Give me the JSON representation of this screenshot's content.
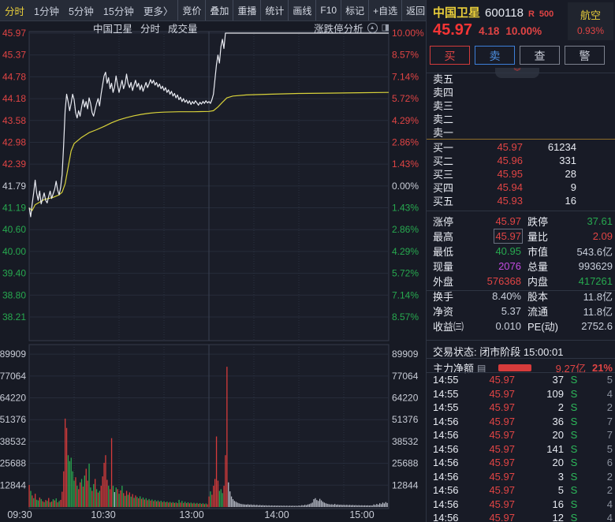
{
  "toolbar": {
    "tabs": [
      {
        "label": "分时",
        "active": true
      },
      {
        "label": "1分钟",
        "active": false
      },
      {
        "label": "5分钟",
        "active": false
      },
      {
        "label": "15分钟",
        "active": false
      },
      {
        "label": "更多〉",
        "active": false
      }
    ],
    "buttons": [
      "竞价",
      "叠加",
      "重播",
      "统计",
      "画线",
      "F10",
      "标记",
      "+自选",
      "返回"
    ]
  },
  "chart_header": {
    "title": "中国卫星",
    "mode": "分时",
    "vol": "成交量",
    "analysis_label": "涨跌停分析"
  },
  "quote": {
    "name": "中国卫星",
    "code": "600118",
    "tag_r": "R",
    "tag_num": "500",
    "sector": "航空",
    "sector_pct": "0.93%",
    "price": "45.97",
    "change": "4.18",
    "change_pct": "10.00%",
    "buttons": [
      {
        "label": "买",
        "kind": "buy"
      },
      {
        "label": "卖",
        "kind": "sell"
      },
      {
        "label": "查",
        "kind": "query"
      },
      {
        "label": "警",
        "kind": "alert"
      }
    ],
    "collapse_icon": "︾"
  },
  "order_book": {
    "sell_rows": [
      {
        "label": "卖五",
        "price": "",
        "vol": ""
      },
      {
        "label": "卖四",
        "price": "",
        "vol": ""
      },
      {
        "label": "卖三",
        "price": "",
        "vol": ""
      },
      {
        "label": "卖二",
        "price": "",
        "vol": ""
      },
      {
        "label": "卖一",
        "price": "",
        "vol": ""
      }
    ],
    "buy_rows": [
      {
        "label": "买一",
        "price": "45.97",
        "vol": "61234"
      },
      {
        "label": "买二",
        "price": "45.96",
        "vol": "331"
      },
      {
        "label": "买三",
        "price": "45.95",
        "vol": "28"
      },
      {
        "label": "买四",
        "price": "45.94",
        "vol": "9"
      },
      {
        "label": "买五",
        "price": "45.93",
        "vol": "16"
      }
    ]
  },
  "stats": [
    {
      "l1": "涨停",
      "v1": "45.97",
      "c1": "red",
      "l2": "跌停",
      "v2": "37.61",
      "c2": "green",
      "box1": false
    },
    {
      "l1": "最高",
      "v1": "45.97",
      "c1": "red",
      "l2": "量比",
      "v2": "2.09",
      "c2": "red",
      "box1": true
    },
    {
      "l1": "最低",
      "v1": "40.95",
      "c1": "green",
      "l2": "市值",
      "v2": "543.6亿",
      "c2": "white",
      "box1": false
    },
    {
      "l1": "现量",
      "v1": "2076",
      "c1": "magenta",
      "l2": "总量",
      "v2": "993629",
      "c2": "white",
      "box1": false
    },
    {
      "l1": "外盘",
      "v1": "576368",
      "c1": "red",
      "l2": "内盘",
      "v2": "417261",
      "c2": "green",
      "box1": false
    },
    {
      "l1": "换手",
      "v1": "8.40%",
      "c1": "white",
      "l2": "股本",
      "v2": "11.8亿",
      "c2": "white",
      "box1": false
    },
    {
      "l1": "净资",
      "v1": "5.37",
      "c1": "white",
      "l2": "流通",
      "v2": "11.8亿",
      "c2": "white",
      "box1": false
    },
    {
      "l1": "收益㈢",
      "v1": "0.010",
      "c1": "white",
      "l2": "PE(动)",
      "v2": "2752.6",
      "c2": "white",
      "box1": false
    }
  ],
  "status": {
    "label": "交易状态:",
    "value": "闭市阶段 15:00:01"
  },
  "main_force": {
    "label": "主力净额",
    "value": "9.27亿",
    "pct": "21%"
  },
  "trades": [
    [
      "14:55",
      "45.97",
      "37",
      "S",
      "5"
    ],
    [
      "14:55",
      "45.97",
      "109",
      "S",
      "4"
    ],
    [
      "14:55",
      "45.97",
      "2",
      "S",
      "2"
    ],
    [
      "14:56",
      "45.97",
      "36",
      "S",
      "7"
    ],
    [
      "14:56",
      "45.97",
      "20",
      "S",
      "7"
    ],
    [
      "14:56",
      "45.97",
      "141",
      "S",
      "5"
    ],
    [
      "14:56",
      "45.97",
      "20",
      "S",
      "6"
    ],
    [
      "14:56",
      "45.97",
      "3",
      "S",
      "2"
    ],
    [
      "14:56",
      "45.97",
      "5",
      "S",
      "2"
    ],
    [
      "14:56",
      "45.97",
      "16",
      "S",
      "4"
    ],
    [
      "14:56",
      "45.97",
      "12",
      "S",
      "4"
    ]
  ],
  "colors": {
    "red": "#e04444",
    "green": "#27a94f",
    "white": "#c9cfdb",
    "magenta": "#c24be0",
    "yellow": "#e9ce3a",
    "axis_white": "#c8ccd6",
    "bar_red": "#d63b3b",
    "bar_green": "#2aa44e",
    "bar_gray": "#b9bdc8",
    "price_line": "#e9ebf2",
    "avg_line": "#d8d23a",
    "grid": "#262c3a",
    "grid_dot": "#2a3140",
    "grid_mid": "#3a4152",
    "pane_border": "#353b4a"
  },
  "chart_data": {
    "type": "line",
    "title": "中国卫星 分时 成交量",
    "prev_close": 41.79,
    "price_max": 45.97,
    "price_min": 38.21,
    "limit_up": 45.97,
    "limit_down": 37.61,
    "day_high": 45.97,
    "day_low": 40.95,
    "minutes_total": 240,
    "price_axis_labels": [
      "45.97",
      "45.37",
      "44.78",
      "44.18",
      "43.58",
      "42.98",
      "42.39",
      "41.79",
      "41.19",
      "40.60",
      "40.00",
      "39.40",
      "38.80",
      "38.21"
    ],
    "pct_axis_labels": [
      "10.00%",
      "8.57%",
      "7.14%",
      "5.72%",
      "4.29%",
      "2.86%",
      "1.43%",
      "0.00%",
      "1.43%",
      "2.86%",
      "4.29%",
      "5.72%",
      "7.14%",
      "8.57%"
    ],
    "volume_axis_labels": [
      "89909",
      "77064",
      "64220",
      "51376",
      "38532",
      "25688",
      "12844"
    ],
    "time_axis_labels": [
      "09:30",
      "10:30",
      "13:00",
      "14:00",
      "15:00"
    ],
    "series": [
      {
        "name": "price",
        "points": [
          [
            0,
            41.2
          ],
          [
            1,
            40.95
          ],
          [
            2,
            41.3
          ],
          [
            3,
            41.6
          ],
          [
            4,
            41.95
          ],
          [
            5,
            41.6
          ],
          [
            6,
            41.4
          ],
          [
            7,
            41.65
          ],
          [
            8,
            41.3
          ],
          [
            9,
            41.45
          ],
          [
            10,
            41.6
          ],
          [
            11,
            41.4
          ],
          [
            12,
            41.33
          ],
          [
            13,
            41.5
          ],
          [
            14,
            41.65
          ],
          [
            15,
            41.45
          ],
          [
            16,
            41.58
          ],
          [
            17,
            41.7
          ],
          [
            18,
            41.92
          ],
          [
            19,
            41.68
          ],
          [
            20,
            41.55
          ],
          [
            21,
            41.75
          ],
          [
            22,
            42.1
          ],
          [
            23,
            42.9
          ],
          [
            24,
            43.85
          ],
          [
            25,
            44.3
          ],
          [
            26,
            44.1
          ],
          [
            27,
            43.85
          ],
          [
            28,
            44.05
          ],
          [
            29,
            44.3
          ],
          [
            30,
            44.15
          ],
          [
            31,
            43.8
          ],
          [
            32,
            43.65
          ],
          [
            33,
            43.85
          ],
          [
            34,
            43.7
          ],
          [
            35,
            43.95
          ],
          [
            36,
            44.15
          ],
          [
            37,
            43.95
          ],
          [
            38,
            44.1
          ],
          [
            39,
            43.9
          ],
          [
            40,
            44.2
          ],
          [
            41,
            44.05
          ],
          [
            42,
            43.8
          ],
          [
            43,
            43.7
          ],
          [
            44,
            43.88
          ],
          [
            45,
            44.05
          ],
          [
            46,
            44.18
          ],
          [
            47,
            43.98
          ],
          [
            48,
            44.3
          ],
          [
            49,
            44.55
          ],
          [
            50,
            44.8
          ],
          [
            51,
            44.9
          ],
          [
            52,
            44.6
          ],
          [
            53,
            44.75
          ],
          [
            54,
            44.45
          ],
          [
            55,
            44.6
          ],
          [
            56,
            44.35
          ],
          [
            57,
            44.5
          ],
          [
            58,
            44.8
          ],
          [
            59,
            44.55
          ],
          [
            60,
            44.35
          ],
          [
            61,
            44.52
          ],
          [
            62,
            44.68
          ],
          [
            63,
            44.45
          ],
          [
            64,
            44.58
          ],
          [
            65,
            44.85
          ],
          [
            66,
            44.6
          ],
          [
            67,
            44.48
          ],
          [
            68,
            44.62
          ],
          [
            69,
            44.4
          ],
          [
            70,
            44.55
          ],
          [
            71,
            44.68
          ],
          [
            72,
            44.5
          ],
          [
            73,
            44.6
          ],
          [
            74,
            44.42
          ],
          [
            75,
            44.55
          ],
          [
            76,
            44.38
          ],
          [
            77,
            44.5
          ],
          [
            78,
            44.62
          ],
          [
            79,
            44.48
          ],
          [
            80,
            44.58
          ],
          [
            81,
            44.7
          ],
          [
            82,
            44.6
          ],
          [
            83,
            44.68
          ],
          [
            84,
            44.55
          ],
          [
            85,
            44.62
          ],
          [
            86,
            44.5
          ],
          [
            87,
            44.58
          ],
          [
            88,
            44.45
          ],
          [
            89,
            44.52
          ],
          [
            90,
            44.4
          ],
          [
            91,
            44.48
          ],
          [
            92,
            44.35
          ],
          [
            93,
            44.42
          ],
          [
            94,
            44.3
          ],
          [
            95,
            44.38
          ],
          [
            96,
            44.25
          ],
          [
            97,
            44.32
          ],
          [
            98,
            44.2
          ],
          [
            99,
            44.28
          ],
          [
            100,
            44.15
          ],
          [
            101,
            44.22
          ],
          [
            102,
            44.1
          ],
          [
            103,
            44.18
          ],
          [
            104,
            44.08
          ],
          [
            105,
            44.14
          ],
          [
            106,
            44.05
          ],
          [
            107,
            44.12
          ],
          [
            108,
            44.02
          ],
          [
            109,
            44.1
          ],
          [
            110,
            44.04
          ],
          [
            111,
            44.12
          ],
          [
            112,
            44.06
          ],
          [
            113,
            44.0
          ],
          [
            114,
            44.08
          ],
          [
            115,
            44.03
          ],
          [
            116,
            44.1
          ],
          [
            117,
            44.05
          ],
          [
            118,
            44.12
          ],
          [
            119,
            44.06
          ],
          [
            120,
            44.1
          ],
          [
            121,
            44.05
          ],
          [
            122,
            44.15
          ],
          [
            123,
            44.3
          ],
          [
            124,
            44.7
          ],
          [
            125,
            45.1
          ],
          [
            126,
            45.37
          ],
          [
            127,
            45.15
          ],
          [
            128,
            45.6
          ],
          [
            129,
            45.8
          ],
          [
            130,
            45.55
          ],
          [
            131,
            45.97
          ],
          [
            240,
            45.97
          ]
        ]
      },
      {
        "name": "average",
        "points": [
          [
            0,
            41.19
          ],
          [
            2,
            41.12
          ],
          [
            4,
            41.28
          ],
          [
            10,
            41.42
          ],
          [
            16,
            41.48
          ],
          [
            20,
            41.55
          ],
          [
            22,
            41.62
          ],
          [
            24,
            41.85
          ],
          [
            26,
            42.3
          ],
          [
            28,
            42.75
          ],
          [
            30,
            42.95
          ],
          [
            35,
            43.12
          ],
          [
            40,
            43.25
          ],
          [
            45,
            43.33
          ],
          [
            50,
            43.42
          ],
          [
            55,
            43.52
          ],
          [
            60,
            43.6
          ],
          [
            65,
            43.66
          ],
          [
            70,
            43.71
          ],
          [
            75,
            43.75
          ],
          [
            80,
            43.78
          ],
          [
            85,
            43.8
          ],
          [
            90,
            43.81
          ],
          [
            100,
            43.82
          ],
          [
            110,
            43.82
          ],
          [
            120,
            43.83
          ],
          [
            123,
            43.85
          ],
          [
            126,
            43.95
          ],
          [
            129,
            44.08
          ],
          [
            132,
            44.2
          ],
          [
            136,
            44.25
          ],
          [
            145,
            44.28
          ],
          [
            160,
            44.3
          ],
          [
            180,
            44.32
          ],
          [
            200,
            44.33
          ],
          [
            220,
            44.34
          ],
          [
            240,
            44.35
          ]
        ]
      }
    ],
    "volume_values": [
      13000,
      9500,
      6800,
      5200,
      7800,
      4300,
      3900,
      5600,
      4700,
      3400,
      2900,
      4100,
      3600,
      5300,
      2800,
      3200,
      4600,
      3900,
      5100,
      2700,
      3500,
      4200,
      9000,
      21000,
      52000,
      46500,
      30500,
      27000,
      29000,
      21000,
      15500,
      17500,
      12500,
      10500,
      14500,
      16500,
      12000,
      18500,
      22500,
      15500,
      25500,
      11500,
      9500,
      13500,
      16500,
      10500,
      8500,
      9500,
      12500,
      18000,
      26000,
      30500,
      16000,
      12500,
      10500,
      40500,
      12500,
      8800,
      11500,
      10500,
      7800,
      9800,
      12500,
      8200,
      6600,
      9500,
      7200,
      8600,
      6100,
      7600,
      5400,
      6800,
      5900,
      5100,
      6300,
      4800,
      5600,
      4400,
      5200,
      4000,
      4700,
      3800,
      4400,
      3500,
      4100,
      3300,
      3900,
      3100,
      3700,
      2900,
      3400,
      2800,
      3200,
      2600,
      3000,
      2500,
      2900,
      2400,
      2700,
      2300,
      4200,
      2600,
      3600,
      2400,
      3100,
      2300,
      2800,
      2200,
      2600,
      2100,
      2500,
      2000,
      2400,
      1900,
      2300,
      1800,
      2200,
      1700,
      2100,
      1600,
      6200,
      9200,
      7200,
      12500,
      16500,
      41500,
      15500,
      9500,
      10500,
      8200,
      12500,
      30500,
      82500,
      14500,
      9200,
      6200,
      4600,
      3600,
      3100,
      2600,
      2200,
      1900,
      1700,
      1600,
      1500,
      1400,
      1600,
      1300,
      1500,
      1200,
      1400,
      1100,
      1300,
      1000,
      1200,
      950,
      1100,
      900,
      1050,
      850,
      1000,
      800,
      950,
      780,
      900,
      760,
      880,
      740,
      860,
      720,
      840,
      700,
      820,
      690,
      800,
      680,
      790,
      670,
      780,
      660,
      900,
      750,
      1100,
      950,
      1300,
      1100,
      1500,
      1700,
      2100,
      2600,
      4600,
      5200,
      4100,
      3600,
      4800,
      3900,
      3100,
      2600,
      2200,
      1900,
      1700,
      1500,
      1600,
      1400,
      1800,
      1300,
      1500,
      1250,
      1400,
      1200,
      1350,
      1150,
      1300,
      1100,
      1250,
      1050,
      1200,
      1000,
      1150,
      980,
      1100,
      950,
      1050,
      930,
      1020,
      900,
      1000,
      880,
      980,
      860,
      1500,
      1200,
      1800,
      1400,
      2200,
      1700,
      2600,
      2100,
      2900,
      2400
    ],
    "volume_colors": [
      "rgrgrggrgr",
      "grgrgrgrgr",
      "grrrrrgggg",
      "grgrrgrgrr",
      "ggrgrgrgrr",
      "rrrgrrgwgr",
      "grgrgrgrgr",
      "grgrgrgrgr",
      "grgrgrgrgr",
      "grgrgrgrgr",
      "grgrgrgrgr",
      "grgrgrgrgr",
      "rgrrrrrggg",
      "rrrwwwwwww",
      "wwwwwwwwww",
      "wwwwwwwwww",
      "wwwwwwwwww",
      "wwwwwwwwww",
      "wwwwwwwwww",
      "wwwwwwwwww",
      "wwwwwwwwww",
      "wwwwwwwwww",
      "wwwwwwwwww",
      "wwwwwwwwww"
    ],
    "legend_position": "none",
    "grid": true
  }
}
